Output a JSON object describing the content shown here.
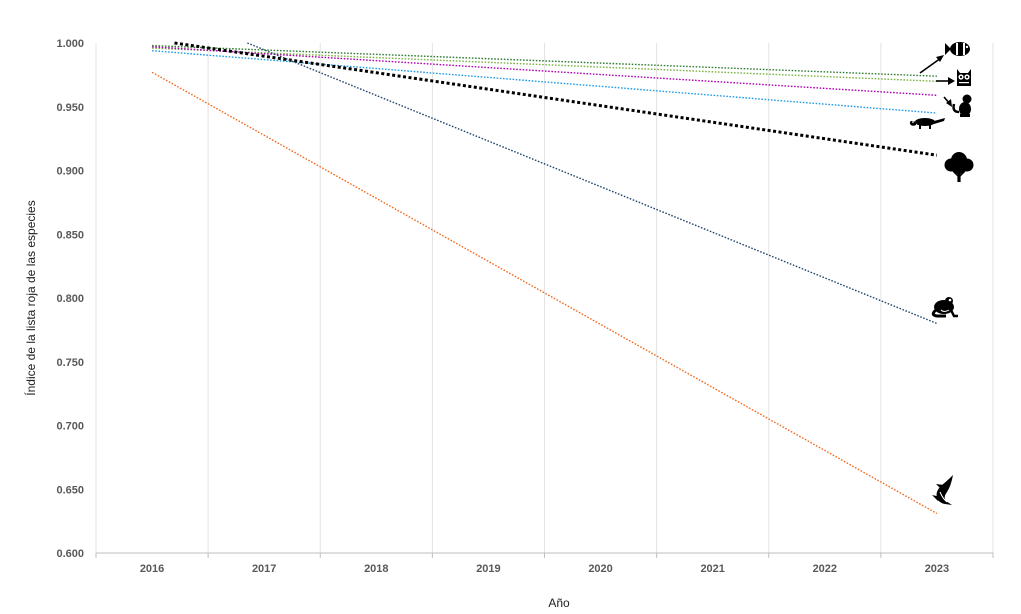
{
  "chart_data": {
    "type": "line",
    "title": "",
    "xlabel": "Año",
    "ylabel": "Índice de la lista roja de las especies",
    "xlim": [
      2015.5,
      2023.5
    ],
    "ylim": [
      0.6,
      1.0
    ],
    "x_ticks": [
      "2016",
      "2017",
      "2018",
      "2019",
      "2020",
      "2021",
      "2022",
      "2023"
    ],
    "y_ticks": [
      "0.600",
      "0.650",
      "0.700",
      "0.750",
      "0.800",
      "0.850",
      "0.900",
      "0.950",
      "1.000"
    ],
    "grid": "vertical",
    "legend": "icons at line ends (right)",
    "series": [
      {
        "icon": "fish-icon",
        "color": "#2e7d32",
        "dash": "dotted",
        "x": [
          2016,
          2023
        ],
        "y": [
          0.998,
          0.974
        ]
      },
      {
        "icon": "owl-icon",
        "color": "#7cb342",
        "dash": "dotted",
        "x": [
          2016,
          2023
        ],
        "y": [
          0.996,
          0.97
        ]
      },
      {
        "icon": "monkey-icon",
        "color": "#b000b5",
        "dash": "dotted",
        "x": [
          2016,
          2023
        ],
        "y": [
          0.997,
          0.959
        ]
      },
      {
        "icon": "lizard-icon",
        "color": "#1e9be8",
        "dash": "dotted",
        "x": [
          2016,
          2023
        ],
        "y": [
          0.994,
          0.945
        ]
      },
      {
        "icon": "tree-icon",
        "color": "#000000",
        "dash": "dotted-bold",
        "x": [
          2016.2,
          2023
        ],
        "y": [
          1.0,
          0.912
        ]
      },
      {
        "icon": "frog-icon",
        "color": "#24466e",
        "dash": "dotted",
        "x": [
          2016.85,
          2023
        ],
        "y": [
          1.0,
          0.78
        ]
      },
      {
        "icon": "shark-icon",
        "color": "#f26b21",
        "dash": "dotted",
        "x": [
          2016,
          2023
        ],
        "y": [
          0.977,
          0.631
        ]
      }
    ]
  }
}
